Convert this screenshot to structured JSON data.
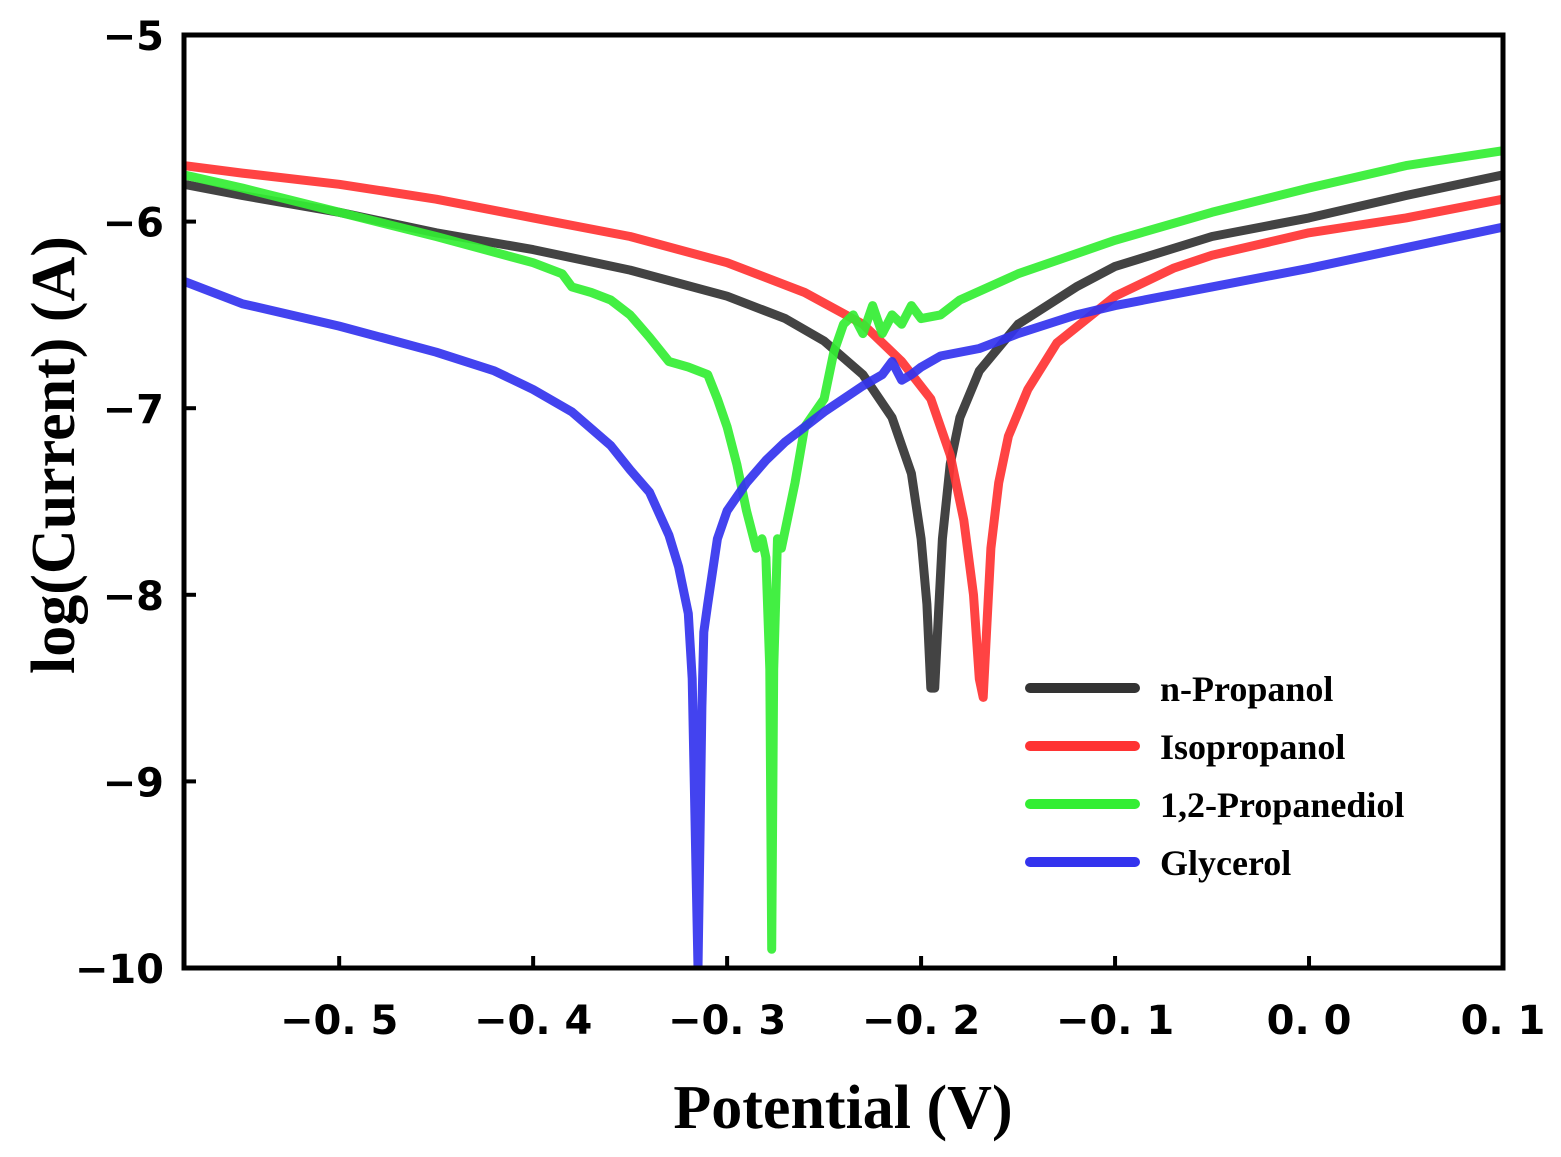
{
  "chart_data": {
    "type": "line",
    "title": "",
    "xlabel": "Potential (V)",
    "ylabel": "log(Current) (A)",
    "xlim": [
      -0.58,
      0.1
    ],
    "ylim": [
      -10,
      -5
    ],
    "xticks": [
      -0.5,
      -0.4,
      -0.3,
      -0.2,
      -0.1,
      0.0,
      0.1
    ],
    "xtick_labels": [
      "−0. 5",
      "−0. 4",
      "−0. 3",
      "−0. 2",
      "−0. 1",
      "0. 0",
      "0. 1"
    ],
    "yticks": [
      -5,
      -6,
      -7,
      -8,
      -9,
      -10
    ],
    "ytick_labels": [
      "−5",
      "−6",
      "−7",
      "−8",
      "−9",
      "−10"
    ],
    "grid": false,
    "legend_position": "lower-right",
    "series": [
      {
        "name": "n-Propanol",
        "color": "#333333",
        "x": [
          -0.58,
          -0.55,
          -0.5,
          -0.45,
          -0.4,
          -0.35,
          -0.3,
          -0.27,
          -0.25,
          -0.23,
          -0.215,
          -0.205,
          -0.2,
          -0.197,
          -0.195,
          -0.193,
          -0.191,
          -0.189,
          -0.185,
          -0.18,
          -0.17,
          -0.15,
          -0.12,
          -0.1,
          -0.05,
          0.0,
          0.05,
          0.1
        ],
        "y": [
          -5.8,
          -5.86,
          -5.95,
          -6.06,
          -6.15,
          -6.26,
          -6.4,
          -6.52,
          -6.64,
          -6.82,
          -7.05,
          -7.35,
          -7.7,
          -8.05,
          -8.5,
          -8.5,
          -8.1,
          -7.7,
          -7.3,
          -7.05,
          -6.8,
          -6.55,
          -6.35,
          -6.24,
          -6.08,
          -5.98,
          -5.86,
          -5.75
        ]
      },
      {
        "name": "Isopropanol",
        "color": "#ff3333",
        "x": [
          -0.58,
          -0.55,
          -0.5,
          -0.45,
          -0.4,
          -0.35,
          -0.3,
          -0.26,
          -0.23,
          -0.21,
          -0.195,
          -0.185,
          -0.178,
          -0.173,
          -0.17,
          -0.168,
          -0.166,
          -0.164,
          -0.16,
          -0.155,
          -0.145,
          -0.13,
          -0.1,
          -0.07,
          -0.05,
          0.0,
          0.05,
          0.1
        ],
        "y": [
          -5.7,
          -5.74,
          -5.8,
          -5.88,
          -5.98,
          -6.08,
          -6.22,
          -6.38,
          -6.55,
          -6.75,
          -6.95,
          -7.25,
          -7.6,
          -8.0,
          -8.45,
          -8.55,
          -8.15,
          -7.75,
          -7.4,
          -7.15,
          -6.9,
          -6.65,
          -6.4,
          -6.25,
          -6.18,
          -6.06,
          -5.98,
          -5.88
        ]
      },
      {
        "name": "1,2-Propanediol",
        "color": "#33ee33",
        "x": [
          -0.58,
          -0.55,
          -0.5,
          -0.45,
          -0.4,
          -0.385,
          -0.38,
          -0.37,
          -0.36,
          -0.35,
          -0.34,
          -0.33,
          -0.32,
          -0.31,
          -0.305,
          -0.3,
          -0.295,
          -0.29,
          -0.285,
          -0.282,
          -0.28,
          -0.278,
          -0.277,
          -0.276,
          -0.274,
          -0.272,
          -0.27,
          -0.265,
          -0.26,
          -0.25,
          -0.245,
          -0.24,
          -0.235,
          -0.23,
          -0.225,
          -0.22,
          -0.215,
          -0.21,
          -0.205,
          -0.2,
          -0.19,
          -0.18,
          -0.15,
          -0.1,
          -0.05,
          0.0,
          0.05,
          0.1
        ],
        "y": [
          -5.75,
          -5.82,
          -5.95,
          -6.08,
          -6.22,
          -6.28,
          -6.35,
          -6.38,
          -6.42,
          -6.5,
          -6.62,
          -6.75,
          -6.78,
          -6.82,
          -6.95,
          -7.1,
          -7.3,
          -7.55,
          -7.75,
          -7.7,
          -7.8,
          -8.4,
          -9.9,
          -8.4,
          -7.7,
          -7.75,
          -7.65,
          -7.4,
          -7.1,
          -6.95,
          -6.7,
          -6.55,
          -6.5,
          -6.6,
          -6.45,
          -6.6,
          -6.5,
          -6.55,
          -6.45,
          -6.52,
          -6.5,
          -6.42,
          -6.28,
          -6.1,
          -5.95,
          -5.82,
          -5.7,
          -5.62
        ]
      },
      {
        "name": "Glycerol",
        "color": "#3333ee",
        "x": [
          -0.58,
          -0.55,
          -0.5,
          -0.45,
          -0.42,
          -0.4,
          -0.38,
          -0.36,
          -0.35,
          -0.34,
          -0.33,
          -0.325,
          -0.32,
          -0.318,
          -0.316,
          -0.315,
          -0.314,
          -0.313,
          -0.312,
          -0.31,
          -0.305,
          -0.3,
          -0.29,
          -0.28,
          -0.27,
          -0.26,
          -0.25,
          -0.24,
          -0.23,
          -0.22,
          -0.215,
          -0.21,
          -0.205,
          -0.2,
          -0.19,
          -0.17,
          -0.15,
          -0.12,
          -0.1,
          -0.05,
          0.0,
          0.05,
          0.1
        ],
        "y": [
          -6.32,
          -6.44,
          -6.56,
          -6.7,
          -6.8,
          -6.9,
          -7.02,
          -7.2,
          -7.33,
          -7.45,
          -7.68,
          -7.85,
          -8.1,
          -8.45,
          -9.5,
          -10.0,
          -9.3,
          -8.6,
          -8.2,
          -8.05,
          -7.7,
          -7.55,
          -7.4,
          -7.28,
          -7.18,
          -7.1,
          -7.02,
          -6.95,
          -6.88,
          -6.82,
          -6.75,
          -6.85,
          -6.82,
          -6.78,
          -6.72,
          -6.68,
          -6.6,
          -6.5,
          -6.45,
          -6.35,
          -6.25,
          -6.14,
          -6.03
        ]
      }
    ]
  }
}
